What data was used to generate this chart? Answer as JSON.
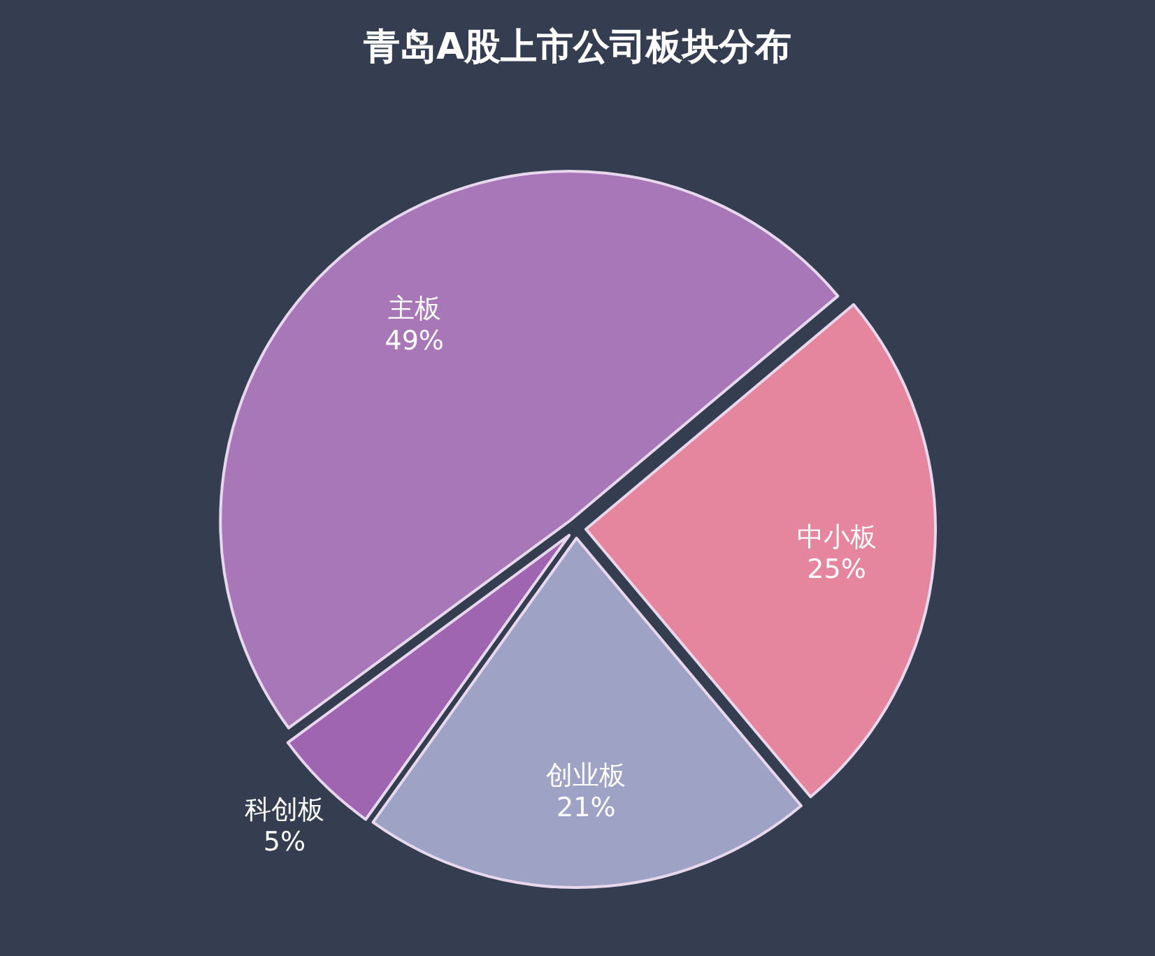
{
  "chart_data": {
    "type": "pie",
    "title": "青岛A股上市公司板块分布",
    "categories": [
      "中小板",
      "创业板",
      "科创板",
      "主板"
    ],
    "values": [
      25,
      21,
      5,
      49
    ],
    "colors": [
      "#e5869e",
      "#9ea3c6",
      "#a065b0",
      "#a877b8"
    ],
    "value_labels": [
      "25%",
      "21%",
      "5%",
      "49%"
    ]
  }
}
